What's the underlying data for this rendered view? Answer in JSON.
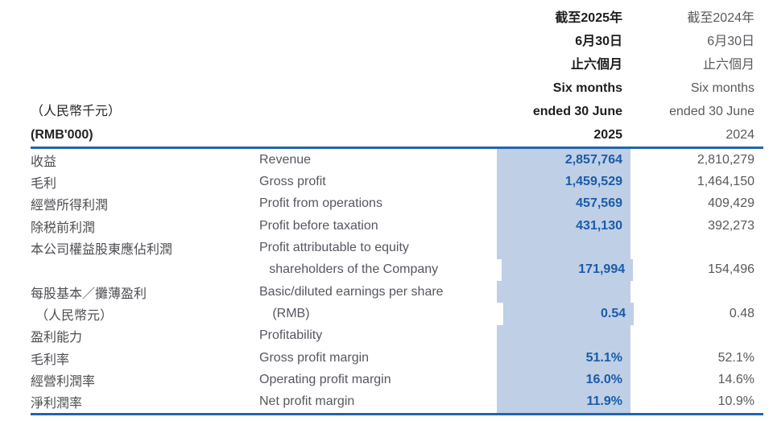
{
  "page": {
    "background": "#ffffff"
  },
  "colors": {
    "highlight_column": "#bfcfe6",
    "rule_line": "#2265ad",
    "accent_blue_values": "#1a5ba9",
    "body_gray_text": "#58595b",
    "header_black_text": "#1d1d1f"
  },
  "table": {
    "unit_label_zh": "（人民幣千元）",
    "unit_label_en": "(RMB'000)",
    "header_2025": {
      "lines": [
        "截至2025年",
        "6月30日",
        "止六個月",
        "Six months",
        "ended 30 June",
        "2025"
      ]
    },
    "header_2024": {
      "lines": [
        "截至2024年",
        "6月30日",
        "止六個月",
        "Six months",
        "ended 30 June",
        "2024"
      ]
    },
    "rows": [
      {
        "zh": "收益",
        "en": "Revenue",
        "v2025": "2,857,764",
        "v2024": "2,810,279"
      },
      {
        "zh": "毛利",
        "en": "Gross profit",
        "v2025": "1,459,529",
        "v2024": "1,464,150"
      },
      {
        "zh": "經營所得利潤",
        "en": "Profit from operations",
        "v2025": "457,569",
        "v2024": "409,429"
      },
      {
        "zh": "除税前利潤",
        "en": "Profit before taxation",
        "v2025": "431,130",
        "v2024": "392,273"
      },
      {
        "zh": "本公司權益股東應佔利潤",
        "en": "Profit attributable to equity",
        "v2025": "",
        "v2024": ""
      },
      {
        "zh": "",
        "en": "shareholders of the Company",
        "en_indent": true,
        "v2025": "171,994",
        "v2024": "154,496"
      },
      {
        "zh": "每股基本／攤薄盈利",
        "en": "Basic/diluted earnings per share",
        "v2025": "",
        "v2024": ""
      },
      {
        "zh": "（人民幣元）",
        "zh_indent": true,
        "en": "(RMB)",
        "en_indent": true,
        "v2025": "0.54",
        "v2024": "0.48"
      },
      {
        "zh": "盈利能力",
        "en": "Profitability",
        "v2025": "",
        "v2024": ""
      },
      {
        "zh": "毛利率",
        "en": "Gross profit margin",
        "v2025": "51.1%",
        "v2024": "52.1%"
      },
      {
        "zh": "經營利潤率",
        "en": "Operating profit margin",
        "v2025": "16.0%",
        "v2024": "14.6%"
      },
      {
        "zh": "淨利潤率",
        "en": "Net profit margin",
        "v2025": "11.9%",
        "v2024": "10.9%"
      }
    ]
  }
}
